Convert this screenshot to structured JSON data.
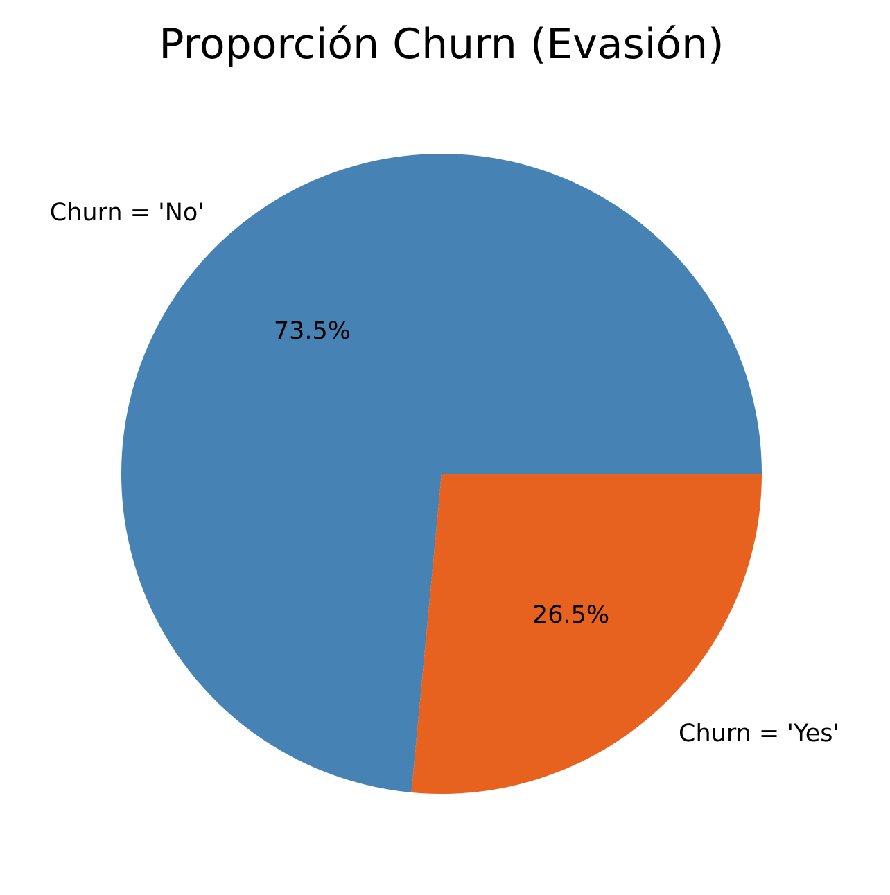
{
  "chart_data": {
    "type": "pie",
    "title": "Proporción Churn (Evasión)",
    "categories": [
      "Churn = 'No'",
      "Churn = 'Yes'"
    ],
    "values": [
      73.5,
      26.5
    ],
    "value_labels": [
      "73.5%",
      "26.5%"
    ],
    "colors": [
      "#4682b4",
      "#e8621f"
    ],
    "start_angle_deg": 0,
    "direction": "counterclockwise",
    "legend": "none"
  }
}
